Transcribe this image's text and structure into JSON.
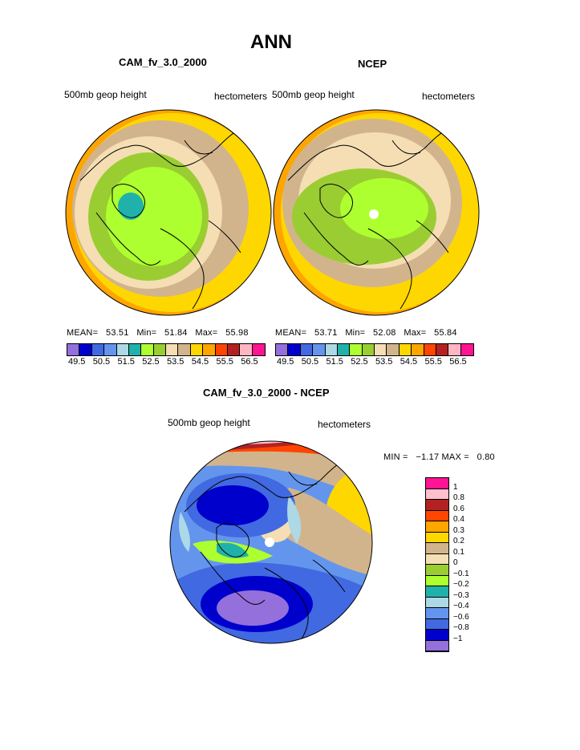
{
  "figure": {
    "title": "ANN"
  },
  "panels": [
    {
      "id": "model",
      "subtitle": "CAM_fv_3.0_2000",
      "field_label": "500mb geop height",
      "units": "hectometers",
      "stats": {
        "mean_label": "MEAN=",
        "mean": "53.51",
        "min_label": "Min=",
        "min": "51.84",
        "max_label": "Max=",
        "max": "55.98"
      }
    },
    {
      "id": "obs",
      "subtitle": "NCEP",
      "field_label": "500mb geop height",
      "units": "hectometers",
      "stats": {
        "mean_label": "MEAN=",
        "mean": "53.71",
        "min_label": "Min=",
        "min": "52.08",
        "max_label": "Max=",
        "max": "55.84"
      }
    },
    {
      "id": "diff",
      "subtitle": "CAM_fv_3.0_2000 - NCEP",
      "field_label": "500mb geop height",
      "units": "hectometers",
      "stats": {
        "min_label": "MIN =",
        "min": "−1.17",
        "max_label": "MAX =",
        "max": "0.80"
      }
    }
  ],
  "colorbars": {
    "abs": {
      "colors": [
        "#9370db",
        "#0000cd",
        "#4169e1",
        "#6495ed",
        "#add8e6",
        "#20b2aa",
        "#adff2f",
        "#9acd32",
        "#f5deb3",
        "#d2b48c",
        "#ffd700",
        "#ffa500",
        "#ff4500",
        "#b22222",
        "#ffb6c1",
        "#ff1493"
      ],
      "labels": [
        "49.5",
        "50.5",
        "51.5",
        "52.5",
        "53.5",
        "54.5",
        "55.5",
        "56.5"
      ]
    },
    "diff": {
      "colors": [
        "#ff1493",
        "#ffc0cb",
        "#b22222",
        "#ff4500",
        "#ffa500",
        "#ffd700",
        "#d2b48c",
        "#f5deb3",
        "#9acd32",
        "#adff2f",
        "#20b2aa",
        "#add8e6",
        "#6495ed",
        "#4169e1",
        "#0000cd",
        "#9370db"
      ],
      "labels": [
        "1",
        "0.8",
        "0.6",
        "0.4",
        "0.3",
        "0.2",
        "0.1",
        "0",
        "−0.1",
        "−0.2",
        "−0.3",
        "−0.4",
        "−0.6",
        "−0.8",
        "−1"
      ]
    }
  }
}
